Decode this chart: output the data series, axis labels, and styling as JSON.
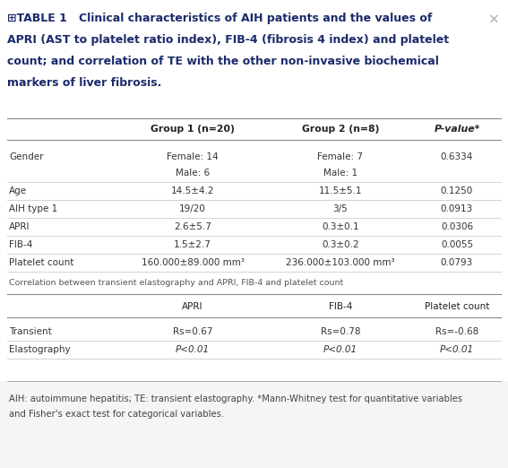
{
  "title_line1": "⊞TABLE 1   Clinical characteristics of AIH patients and the values of",
  "title_line2": "APRI (AST to platelet ratio index), FIB-4 (fibrosis 4 index) and platelet",
  "title_line3": "count; and correlation of TE with the other non-invasive biochemical",
  "title_line4": "markers of liver fibrosis.",
  "close_symbol": "×",
  "bg_color": "#ffffff",
  "title_color": "#1b2a6b",
  "title_fontsize": 9.0,
  "close_color": "#aaaaaa",
  "header1_cols": [
    "Group 1 (n=20)",
    "Group 2 (n=8)",
    "P-value*"
  ],
  "section1_rows": [
    [
      "Gender",
      "Female: 14",
      "Female: 7",
      "0.6334"
    ],
    [
      "",
      "Male: 6",
      "Male: 1",
      ""
    ],
    [
      "Age",
      "14.5±4.2",
      "11.5±5.1",
      "0.1250"
    ],
    [
      "AIH type 1",
      "19/20",
      "3/5",
      "0.0913"
    ],
    [
      "APRI",
      "2.6±5.7",
      "0.3±0.1",
      "0.0306"
    ],
    [
      "FIB-4",
      "1.5±2.7",
      "0.3±0.2",
      "0.0055"
    ],
    [
      "Platelet count",
      "160.000±89.000 mm³",
      "236.000±103.000 mm³",
      "0.0793"
    ]
  ],
  "section2_label": "Correlation between transient elastography and APRI, FIB-4 and platelet count",
  "header2_cols": [
    "APRI",
    "FIB-4",
    "Platelet count"
  ],
  "section2_rows": [
    [
      "Transient",
      "Rs=0.67",
      "Rs=0.78",
      "Rs=-0.68"
    ],
    [
      "Elastography",
      "P<0.01",
      "P<0.01",
      "P<0.01"
    ]
  ],
  "footnote_line1": "AIH: autoimmune hepatitis; TE: transient elastography. *Mann-Whitney test for quantitative variables",
  "footnote_line2": "and Fisher's exact test for categorical variables.",
  "data_color": "#333333",
  "header_color": "#222222",
  "line_dark": "#888888",
  "line_light": "#cccccc",
  "section2_label_color": "#555555",
  "footnote_color": "#444444",
  "footnote_bg": "#f5f5f5"
}
